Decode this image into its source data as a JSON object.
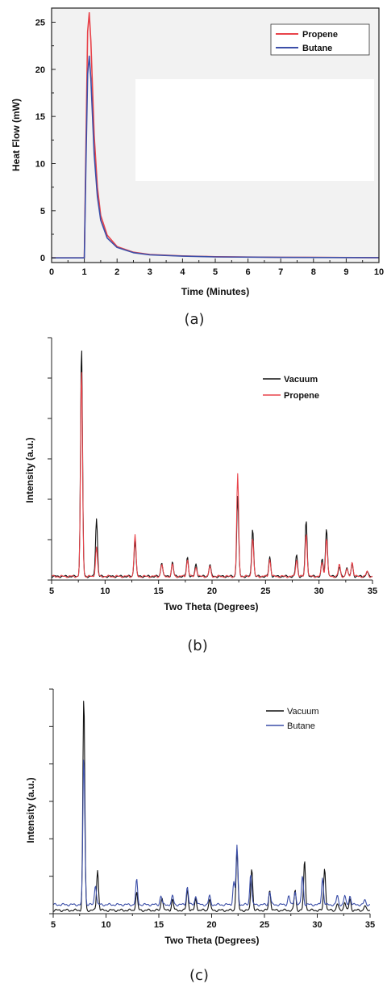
{
  "chart_data": [
    {
      "type": "line",
      "panel_label": "(a)",
      "xlabel": "Time (Minutes)",
      "ylabel": "Heat Flow (mW)",
      "xlim": [
        0,
        10
      ],
      "ylim": [
        -0.5,
        26.5
      ],
      "xticks": [
        "0",
        "1",
        "2",
        "3",
        "4",
        "5",
        "6",
        "7",
        "8",
        "9",
        "10"
      ],
      "yticks": [
        "0",
        "5",
        "10",
        "15",
        "20",
        "25"
      ],
      "legend_position": "top-right",
      "series": [
        {
          "name": "Propene",
          "color": "#e8434a",
          "x": [
            0,
            1.0,
            1.05,
            1.1,
            1.15,
            1.2,
            1.3,
            1.4,
            1.5,
            1.7,
            2.0,
            2.5,
            3.0,
            4.0,
            5.0,
            7.0,
            10.0
          ],
          "y": [
            0,
            0,
            12,
            24,
            26.0,
            23,
            13,
            7.5,
            4.5,
            2.4,
            1.2,
            0.6,
            0.35,
            0.2,
            0.12,
            0.06,
            0.02
          ]
        },
        {
          "name": "Butane",
          "color": "#3c4fa8",
          "x": [
            0,
            1.0,
            1.05,
            1.1,
            1.15,
            1.2,
            1.3,
            1.4,
            1.5,
            1.7,
            2.0,
            2.5,
            3.0,
            4.0,
            5.0,
            7.0,
            10.0
          ],
          "y": [
            0,
            0,
            10,
            19.5,
            21.4,
            19,
            11,
            6.5,
            4.0,
            2.1,
            1.1,
            0.55,
            0.32,
            0.18,
            0.1,
            0.05,
            0.02
          ]
        }
      ]
    },
    {
      "type": "line",
      "panel_label": "(b)",
      "xlabel": "Two Theta (Degrees)",
      "ylabel": "Intensity (a.u.)",
      "xlim": [
        5,
        35
      ],
      "ylim": [
        0,
        100
      ],
      "xticks": [
        "5",
        "10",
        "15",
        "20",
        "25",
        "30",
        "35"
      ],
      "legend_position": "top-right",
      "series": [
        {
          "name": "Vacuum",
          "color": "#111111",
          "peaks": [
            [
              7.8,
              95
            ],
            [
              9.2,
              24
            ],
            [
              12.8,
              15
            ],
            [
              15.3,
              6
            ],
            [
              16.3,
              6
            ],
            [
              17.7,
              8
            ],
            [
              18.5,
              5
            ],
            [
              19.8,
              5
            ],
            [
              22.4,
              33
            ],
            [
              23.8,
              20
            ],
            [
              25.4,
              8
            ],
            [
              27.9,
              9
            ],
            [
              28.8,
              23
            ],
            [
              30.3,
              7
            ],
            [
              30.7,
              20
            ],
            [
              31.9,
              4
            ],
            [
              32.6,
              4
            ],
            [
              33.1,
              5
            ],
            [
              34.5,
              2
            ]
          ]
        },
        {
          "name": "Propene",
          "color": "#e8434a",
          "peaks": [
            [
              7.8,
              86
            ],
            [
              9.2,
              12
            ],
            [
              12.8,
              17
            ],
            [
              15.3,
              5
            ],
            [
              16.3,
              5
            ],
            [
              17.7,
              7
            ],
            [
              18.5,
              4
            ],
            [
              19.8,
              4
            ],
            [
              22.4,
              42
            ],
            [
              23.8,
              16
            ],
            [
              25.4,
              7
            ],
            [
              27.9,
              7
            ],
            [
              28.8,
              18
            ],
            [
              30.3,
              6
            ],
            [
              30.7,
              16
            ],
            [
              31.9,
              5
            ],
            [
              32.6,
              3
            ],
            [
              33.1,
              6
            ],
            [
              34.5,
              2
            ]
          ]
        }
      ]
    },
    {
      "type": "line",
      "panel_label": "(c)",
      "xlabel": "Two Theta (Degrees)",
      "ylabel": "Intensity (a.u.)",
      "xlim": [
        5,
        35
      ],
      "ylim": [
        0,
        100
      ],
      "xticks": [
        "5",
        "10",
        "15",
        "20",
        "25",
        "30",
        "35"
      ],
      "legend_position": "top-right",
      "series": [
        {
          "name": "Vacuum",
          "color": "#111111",
          "peaks": [
            [
              7.9,
              95
            ],
            [
              9.2,
              18
            ],
            [
              12.9,
              8
            ],
            [
              15.3,
              6
            ],
            [
              16.3,
              5
            ],
            [
              17.7,
              9
            ],
            [
              18.5,
              5
            ],
            [
              19.8,
              5
            ],
            [
              22.4,
              27
            ],
            [
              23.8,
              19
            ],
            [
              25.5,
              9
            ],
            [
              27.9,
              9
            ],
            [
              28.8,
              22
            ],
            [
              30.7,
              19
            ],
            [
              31.9,
              3
            ],
            [
              32.6,
              4
            ],
            [
              33.1,
              5
            ],
            [
              34.5,
              2
            ]
          ]
        },
        {
          "name": "Butane",
          "color": "#3c4fa8",
          "baseline": 4,
          "peaks": [
            [
              7.9,
              66
            ],
            [
              9.0,
              9
            ],
            [
              12.9,
              11
            ],
            [
              15.2,
              4
            ],
            [
              16.3,
              4
            ],
            [
              17.7,
              8
            ],
            [
              18.5,
              4
            ],
            [
              19.8,
              4
            ],
            [
              22.1,
              10
            ],
            [
              22.4,
              26
            ],
            [
              23.7,
              14
            ],
            [
              25.5,
              6
            ],
            [
              27.3,
              4
            ],
            [
              27.9,
              6
            ],
            [
              28.6,
              13
            ],
            [
              30.5,
              12
            ],
            [
              31.9,
              4
            ],
            [
              32.6,
              4
            ],
            [
              33.1,
              4
            ],
            [
              34.5,
              2
            ]
          ]
        }
      ]
    }
  ]
}
